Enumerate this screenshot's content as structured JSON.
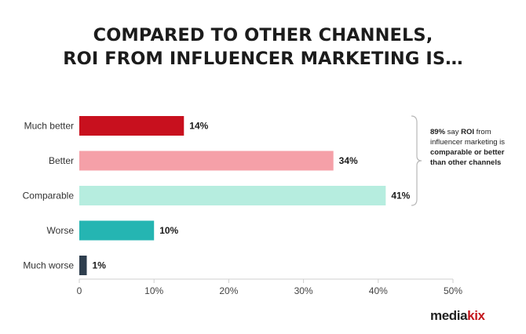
{
  "chart_data": {
    "type": "bar",
    "orientation": "horizontal",
    "title_lines": [
      "COMPARED TO OTHER CHANNELS,",
      "ROI FROM INFLUENCER MARKETING IS…"
    ],
    "categories": [
      "Much better",
      "Better",
      "Comparable",
      "Worse",
      "Much worse"
    ],
    "values": [
      14,
      34,
      41,
      10,
      1
    ],
    "value_labels": [
      "14%",
      "34%",
      "41%",
      "10%",
      "1%"
    ],
    "colors": [
      "#c8101e",
      "#f5a0a8",
      "#b6eddf",
      "#25b5b2",
      "#2e3e4e"
    ],
    "xlim": [
      0,
      50
    ],
    "xticks": [
      0,
      10,
      20,
      30,
      40,
      50
    ],
    "xtick_labels": [
      "0",
      "10%",
      "20%",
      "30%",
      "40%",
      "50%"
    ],
    "grid": false,
    "annotation": {
      "bold_1": "89%",
      "text_1": " say ",
      "bold_2": "ROI",
      "text_2": " from influencer marketing is ",
      "bold_3": "comparable or better than other channels"
    }
  },
  "logo": {
    "part1": "media",
    "part2": "kix"
  }
}
